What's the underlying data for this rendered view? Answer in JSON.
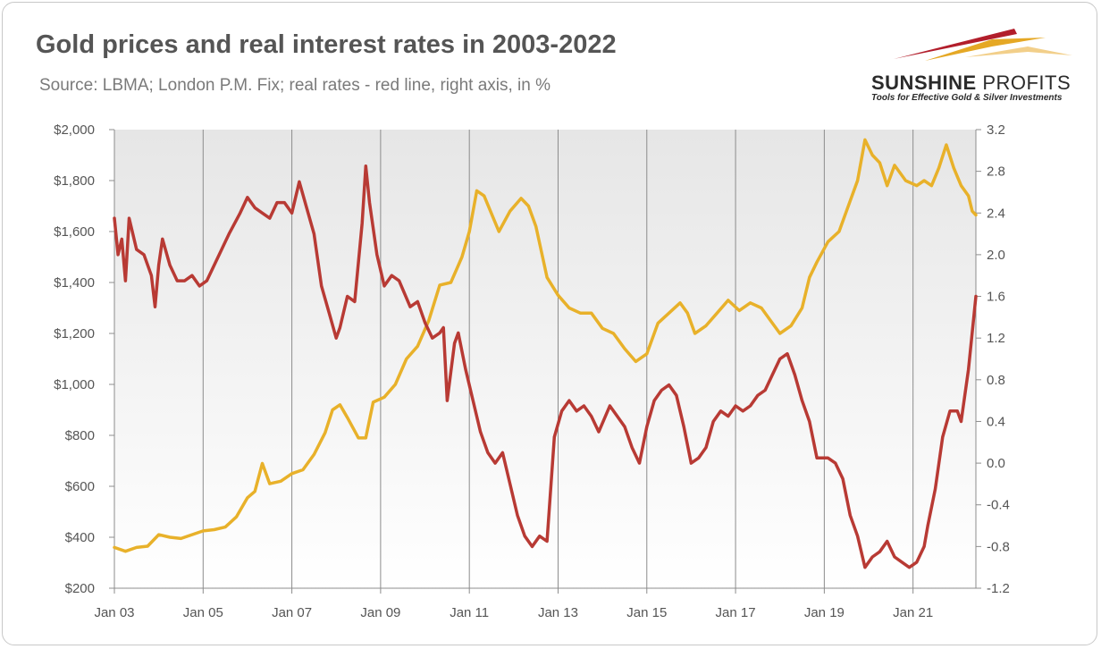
{
  "header": {
    "title": "Gold prices and real interest rates in 2003-2022",
    "subtitle": "Source: LBMA; London P.M. Fix; real rates - red line, right axis, in %"
  },
  "logo": {
    "name_bold": "SUNSHINE",
    "name_light": "PROFITS",
    "tagline": "Tools for Effective Gold & Silver Investments",
    "colors": [
      "#b21e2b",
      "#e5a825",
      "#f2cf8a"
    ]
  },
  "chart_data": {
    "type": "line",
    "x_start": "Jan 03",
    "x_end": "Sep 22",
    "x_ticks": [
      "Jan 03",
      "Jan 05",
      "Jan 07",
      "Jan 09",
      "Jan 11",
      "Jan 13",
      "Jan 15",
      "Jan 17",
      "Jan 19",
      "Jan 21"
    ],
    "y_left": {
      "range": [
        200,
        2000
      ],
      "ticks": [
        "$200",
        "$400",
        "$600",
        "$800",
        "$1,000",
        "$1,200",
        "$1,400",
        "$1,600",
        "$1,800",
        "$2,000"
      ]
    },
    "y_right": {
      "range": [
        -1.2,
        3.2
      ],
      "ticks": [
        "-1.2",
        "-0.8",
        "-0.4",
        "0.0",
        "0.4",
        "0.8",
        "1.2",
        "1.6",
        "2.0",
        "2.4",
        "2.8",
        "3.2"
      ]
    },
    "grid": true,
    "series": [
      {
        "axis": "left",
        "color": "#e8b12a",
        "points": [
          [
            0,
            360
          ],
          [
            3,
            345
          ],
          [
            6,
            360
          ],
          [
            9,
            365
          ],
          [
            12,
            410
          ],
          [
            15,
            400
          ],
          [
            18,
            395
          ],
          [
            21,
            410
          ],
          [
            24,
            425
          ],
          [
            27,
            430
          ],
          [
            30,
            440
          ],
          [
            33,
            480
          ],
          [
            36,
            555
          ],
          [
            38,
            580
          ],
          [
            40,
            690
          ],
          [
            42,
            610
          ],
          [
            45,
            620
          ],
          [
            48,
            650
          ],
          [
            51,
            665
          ],
          [
            54,
            725
          ],
          [
            57,
            810
          ],
          [
            59,
            900
          ],
          [
            61,
            920
          ],
          [
            63,
            870
          ],
          [
            66,
            790
          ],
          [
            68,
            790
          ],
          [
            70,
            930
          ],
          [
            73,
            950
          ],
          [
            76,
            1000
          ],
          [
            79,
            1100
          ],
          [
            82,
            1150
          ],
          [
            85,
            1250
          ],
          [
            88,
            1390
          ],
          [
            91,
            1400
          ],
          [
            94,
            1500
          ],
          [
            96,
            1600
          ],
          [
            98,
            1760
          ],
          [
            100,
            1740
          ],
          [
            102,
            1670
          ],
          [
            104,
            1600
          ],
          [
            107,
            1680
          ],
          [
            110,
            1730
          ],
          [
            112,
            1700
          ],
          [
            114,
            1620
          ],
          [
            117,
            1420
          ],
          [
            120,
            1350
          ],
          [
            123,
            1300
          ],
          [
            126,
            1280
          ],
          [
            129,
            1280
          ],
          [
            132,
            1220
          ],
          [
            135,
            1200
          ],
          [
            138,
            1140
          ],
          [
            141,
            1090
          ],
          [
            144,
            1120
          ],
          [
            147,
            1240
          ],
          [
            150,
            1280
          ],
          [
            153,
            1320
          ],
          [
            155,
            1280
          ],
          [
            157,
            1200
          ],
          [
            160,
            1230
          ],
          [
            163,
            1280
          ],
          [
            166,
            1330
          ],
          [
            169,
            1290
          ],
          [
            172,
            1320
          ],
          [
            175,
            1300
          ],
          [
            178,
            1240
          ],
          [
            180,
            1200
          ],
          [
            183,
            1230
          ],
          [
            186,
            1300
          ],
          [
            188,
            1420
          ],
          [
            190,
            1480
          ],
          [
            193,
            1560
          ],
          [
            196,
            1600
          ],
          [
            199,
            1720
          ],
          [
            201,
            1800
          ],
          [
            203,
            1960
          ],
          [
            205,
            1900
          ],
          [
            207,
            1870
          ],
          [
            209,
            1780
          ],
          [
            211,
            1860
          ],
          [
            214,
            1800
          ],
          [
            217,
            1780
          ],
          [
            219,
            1800
          ],
          [
            221,
            1780
          ],
          [
            223,
            1850
          ],
          [
            225,
            1940
          ],
          [
            227,
            1850
          ],
          [
            229,
            1780
          ],
          [
            231,
            1740
          ],
          [
            232,
            1680
          ],
          [
            233,
            1665
          ]
        ]
      },
      {
        "axis": "right",
        "color": "#b83a34",
        "points": [
          [
            0,
            2.35
          ],
          [
            1,
            2.0
          ],
          [
            2,
            2.15
          ],
          [
            3,
            1.75
          ],
          [
            4,
            2.35
          ],
          [
            6,
            2.05
          ],
          [
            8,
            2.0
          ],
          [
            10,
            1.8
          ],
          [
            11,
            1.5
          ],
          [
            12,
            1.9
          ],
          [
            13,
            2.15
          ],
          [
            15,
            1.9
          ],
          [
            17,
            1.75
          ],
          [
            19,
            1.75
          ],
          [
            21,
            1.8
          ],
          [
            23,
            1.7
          ],
          [
            25,
            1.75
          ],
          [
            27,
            1.9
          ],
          [
            29,
            2.05
          ],
          [
            31,
            2.2
          ],
          [
            34,
            2.4
          ],
          [
            36,
            2.55
          ],
          [
            38,
            2.45
          ],
          [
            40,
            2.4
          ],
          [
            42,
            2.35
          ],
          [
            44,
            2.5
          ],
          [
            46,
            2.5
          ],
          [
            48,
            2.4
          ],
          [
            50,
            2.7
          ],
          [
            52,
            2.45
          ],
          [
            54,
            2.2
          ],
          [
            56,
            1.7
          ],
          [
            58,
            1.45
          ],
          [
            60,
            1.2
          ],
          [
            61,
            1.3
          ],
          [
            63,
            1.6
          ],
          [
            65,
            1.55
          ],
          [
            67,
            2.3
          ],
          [
            68,
            2.85
          ],
          [
            69,
            2.5
          ],
          [
            71,
            2.0
          ],
          [
            73,
            1.7
          ],
          [
            75,
            1.8
          ],
          [
            77,
            1.75
          ],
          [
            80,
            1.5
          ],
          [
            82,
            1.55
          ],
          [
            84,
            1.35
          ],
          [
            86,
            1.2
          ],
          [
            88,
            1.25
          ],
          [
            89,
            1.3
          ],
          [
            90,
            0.6
          ],
          [
            92,
            1.15
          ],
          [
            93,
            1.25
          ],
          [
            95,
            0.9
          ],
          [
            97,
            0.6
          ],
          [
            99,
            0.3
          ],
          [
            101,
            0.1
          ],
          [
            103,
            0.0
          ],
          [
            105,
            0.1
          ],
          [
            107,
            -0.2
          ],
          [
            109,
            -0.5
          ],
          [
            111,
            -0.7
          ],
          [
            113,
            -0.8
          ],
          [
            115,
            -0.7
          ],
          [
            117,
            -0.75
          ],
          [
            119,
            0.25
          ],
          [
            121,
            0.5
          ],
          [
            123,
            0.6
          ],
          [
            125,
            0.5
          ],
          [
            127,
            0.55
          ],
          [
            129,
            0.45
          ],
          [
            131,
            0.3
          ],
          [
            134,
            0.55
          ],
          [
            136,
            0.45
          ],
          [
            138,
            0.35
          ],
          [
            140,
            0.15
          ],
          [
            142,
            0.0
          ],
          [
            144,
            0.35
          ],
          [
            146,
            0.6
          ],
          [
            148,
            0.7
          ],
          [
            150,
            0.75
          ],
          [
            152,
            0.65
          ],
          [
            154,
            0.35
          ],
          [
            156,
            0.0
          ],
          [
            158,
            0.05
          ],
          [
            160,
            0.15
          ],
          [
            162,
            0.4
          ],
          [
            164,
            0.5
          ],
          [
            166,
            0.45
          ],
          [
            168,
            0.55
          ],
          [
            170,
            0.5
          ],
          [
            172,
            0.55
          ],
          [
            174,
            0.65
          ],
          [
            176,
            0.7
          ],
          [
            178,
            0.85
          ],
          [
            180,
            1.0
          ],
          [
            182,
            1.05
          ],
          [
            184,
            0.85
          ],
          [
            186,
            0.6
          ],
          [
            188,
            0.4
          ],
          [
            190,
            0.05
          ],
          [
            193,
            0.05
          ],
          [
            195,
            0.0
          ],
          [
            197,
            -0.15
          ],
          [
            199,
            -0.5
          ],
          [
            201,
            -0.7
          ],
          [
            203,
            -1.0
          ],
          [
            205,
            -0.9
          ],
          [
            207,
            -0.85
          ],
          [
            209,
            -0.75
          ],
          [
            211,
            -0.9
          ],
          [
            213,
            -0.95
          ],
          [
            215,
            -1.0
          ],
          [
            217,
            -0.95
          ],
          [
            219,
            -0.8
          ],
          [
            220,
            -0.6
          ],
          [
            222,
            -0.25
          ],
          [
            224,
            0.25
          ],
          [
            226,
            0.5
          ],
          [
            228,
            0.5
          ],
          [
            229,
            0.4
          ],
          [
            231,
            0.9
          ],
          [
            233,
            1.6
          ]
        ]
      }
    ]
  }
}
